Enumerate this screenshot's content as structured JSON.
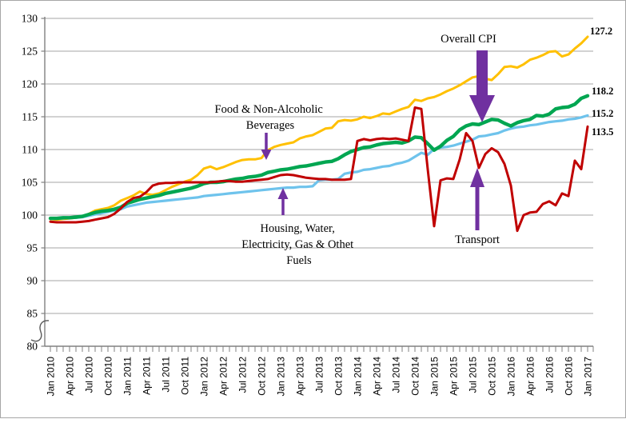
{
  "figure": {
    "background": "#ffffff",
    "border_color": "#a6a6a6",
    "gridline_color": "#a6a6a6",
    "axis_color": "#808080",
    "arrow_color": "#7030a0",
    "has_y_axis_break": true
  },
  "chart_data": {
    "type": "line",
    "title": "",
    "xlabel": "",
    "ylabel": "",
    "grid": "horizontal",
    "legend_position": "none (inline annotations with arrows)",
    "ylim": [
      80,
      130
    ],
    "y_ticks": [
      130,
      125,
      120,
      115,
      110,
      105,
      100,
      95,
      90,
      85,
      80
    ],
    "x_unit": "monthly, Jan 2010 to Jan 2017 (85 points), tick every month, label every 3 months",
    "x_tick_labels": [
      "Jan 2010",
      "Apr 2010",
      "Jul 2010",
      "Oct 2010",
      "Jan 2011",
      "Apr 2011",
      "Jul 2011",
      "Oct 2011",
      "Jan 2012",
      "Apr 2012",
      "Jul 2012",
      "Oct 2012",
      "Jan 2013",
      "Apr 2013",
      "Jul 2013",
      "Oct 2013",
      "Jan 2014",
      "Apr 2014",
      "Jul 2014",
      "Oct 2014",
      "Jan 2015",
      "Apr 2015",
      "Jul 2015",
      "Oct 2015",
      "Jan 2016",
      "Apr 2016",
      "Jul 2016",
      "Oct 2016",
      "Jan 2017"
    ],
    "series": [
      {
        "name": "Food & Non-Alcoholic Beverages",
        "slug": "food-non-alcoholic-beverages",
        "color": "#FFC000",
        "stroke_width": 3,
        "end_label": "127.2",
        "values": [
          99.4,
          99.3,
          99.4,
          99.5,
          99.6,
          99.7,
          100.2,
          100.7,
          100.9,
          101.1,
          101.5,
          102.2,
          102.6,
          103.0,
          103.6,
          103.2,
          103.1,
          103.3,
          103.8,
          104.3,
          104.7,
          105.1,
          105.4,
          106.1,
          107.1,
          107.4,
          107.0,
          107.3,
          107.7,
          108.1,
          108.4,
          108.5,
          108.5,
          108.7,
          109.9,
          110.4,
          110.7,
          110.9,
          111.1,
          111.7,
          112.0,
          112.2,
          112.7,
          113.2,
          113.3,
          114.3,
          114.5,
          114.4,
          114.6,
          115.0,
          114.8,
          115.1,
          115.5,
          115.4,
          115.8,
          116.2,
          116.5,
          117.6,
          117.4,
          117.8,
          118.0,
          118.4,
          118.9,
          119.3,
          119.8,
          120.4,
          121.0,
          121.2,
          120.8,
          120.6,
          121.5,
          122.6,
          122.7,
          122.5,
          123.0,
          123.7,
          124.0,
          124.4,
          124.9,
          125.0,
          124.2,
          124.5,
          125.4,
          126.2,
          127.2
        ]
      },
      {
        "name": "Housing, Water, Electricity, Gas & Othet Fuels",
        "slug": "housing-water-electricity-gas-other-fuels",
        "color": "#6EC3EC",
        "stroke_width": 3.2,
        "end_label": "115.2",
        "values": [
          99.5,
          99.5,
          99.5,
          99.6,
          99.6,
          99.7,
          99.9,
          100.1,
          100.3,
          100.5,
          100.7,
          100.9,
          101.3,
          101.5,
          101.7,
          101.9,
          102.0,
          102.1,
          102.2,
          102.3,
          102.4,
          102.5,
          102.6,
          102.7,
          102.9,
          103.0,
          103.1,
          103.2,
          103.3,
          103.4,
          103.5,
          103.6,
          103.7,
          103.8,
          103.9,
          104.0,
          104.1,
          104.2,
          104.2,
          104.3,
          104.3,
          104.4,
          105.3,
          105.4,
          105.4,
          105.5,
          106.3,
          106.5,
          106.6,
          106.9,
          107.0,
          107.2,
          107.4,
          107.5,
          107.8,
          108.0,
          108.3,
          108.9,
          109.5,
          109.2,
          110.1,
          110.3,
          110.4,
          110.6,
          110.9,
          111.2,
          111.5,
          112.0,
          112.1,
          112.3,
          112.5,
          112.9,
          113.2,
          113.4,
          113.5,
          113.7,
          113.8,
          114.0,
          114.2,
          114.3,
          114.4,
          114.6,
          114.7,
          114.9,
          115.2
        ]
      },
      {
        "name": "Overall CPI",
        "slug": "overall-cpi",
        "color": "#00A651",
        "stroke_width": 4.4,
        "end_label": "118.2",
        "values": [
          99.5,
          99.5,
          99.6,
          99.6,
          99.7,
          99.8,
          100.1,
          100.4,
          100.6,
          100.7,
          100.9,
          101.2,
          101.8,
          102.1,
          102.4,
          102.6,
          102.8,
          103.0,
          103.3,
          103.5,
          103.7,
          103.9,
          104.1,
          104.4,
          104.8,
          105.0,
          105.0,
          105.1,
          105.3,
          105.5,
          105.6,
          105.8,
          105.9,
          106.1,
          106.5,
          106.7,
          106.9,
          107.0,
          107.2,
          107.4,
          107.5,
          107.7,
          107.9,
          108.1,
          108.2,
          108.6,
          109.2,
          109.7,
          110.0,
          110.3,
          110.4,
          110.7,
          110.9,
          111.0,
          111.1,
          111.0,
          111.3,
          111.9,
          111.8,
          110.9,
          109.9,
          110.5,
          111.4,
          112.0,
          113.0,
          113.6,
          113.9,
          113.8,
          114.2,
          114.6,
          114.5,
          114.0,
          113.6,
          114.1,
          114.4,
          114.6,
          115.2,
          115.1,
          115.4,
          116.2,
          116.4,
          116.5,
          116.9,
          117.8,
          118.2
        ]
      },
      {
        "name": "Transport",
        "slug": "transport",
        "color": "#C00000",
        "stroke_width": 3,
        "end_label": "113.5",
        "values": [
          99.0,
          98.9,
          98.9,
          98.9,
          98.9,
          99.0,
          99.1,
          99.3,
          99.5,
          99.7,
          100.2,
          101.0,
          102.0,
          102.6,
          102.8,
          103.5,
          104.5,
          104.8,
          104.9,
          104.9,
          105.0,
          105.0,
          105.0,
          105.0,
          105.0,
          105.0,
          105.1,
          105.2,
          105.2,
          105.1,
          105.1,
          105.2,
          105.3,
          105.4,
          105.5,
          105.8,
          106.1,
          106.2,
          106.1,
          105.9,
          105.7,
          105.6,
          105.5,
          105.5,
          105.4,
          105.4,
          105.4,
          105.5,
          111.3,
          111.6,
          111.4,
          111.6,
          111.7,
          111.6,
          111.7,
          111.5,
          111.3,
          116.4,
          116.2,
          107.0,
          98.3,
          105.3,
          105.6,
          105.5,
          108.5,
          112.5,
          111.3,
          107.2,
          109.3,
          110.2,
          109.6,
          107.8,
          104.5,
          97.6,
          100.0,
          100.4,
          100.5,
          101.7,
          102.1,
          101.5,
          103.3,
          102.9,
          108.3,
          107.0,
          113.5
        ]
      }
    ],
    "annotations": [
      {
        "lines": [
          "Food & Non-Alcoholic",
          "Beverages"
        ],
        "arrow_direction": "down",
        "points_to": "yellow Food line near Oct 2012"
      },
      {
        "lines": [
          "Overall CPI"
        ],
        "arrow_direction": "down",
        "points_to": "green Overall CPI line in mid 2015"
      },
      {
        "lines": [
          "Housing, Water,",
          "Electricity, Gas & Othet",
          "Fuels"
        ],
        "arrow_direction": "up",
        "points_to": "light-blue Housing line near Jan 2013"
      },
      {
        "lines": [
          "Transport"
        ],
        "arrow_direction": "up",
        "points_to": "dark-red Transport line dip in mid 2015"
      }
    ]
  }
}
